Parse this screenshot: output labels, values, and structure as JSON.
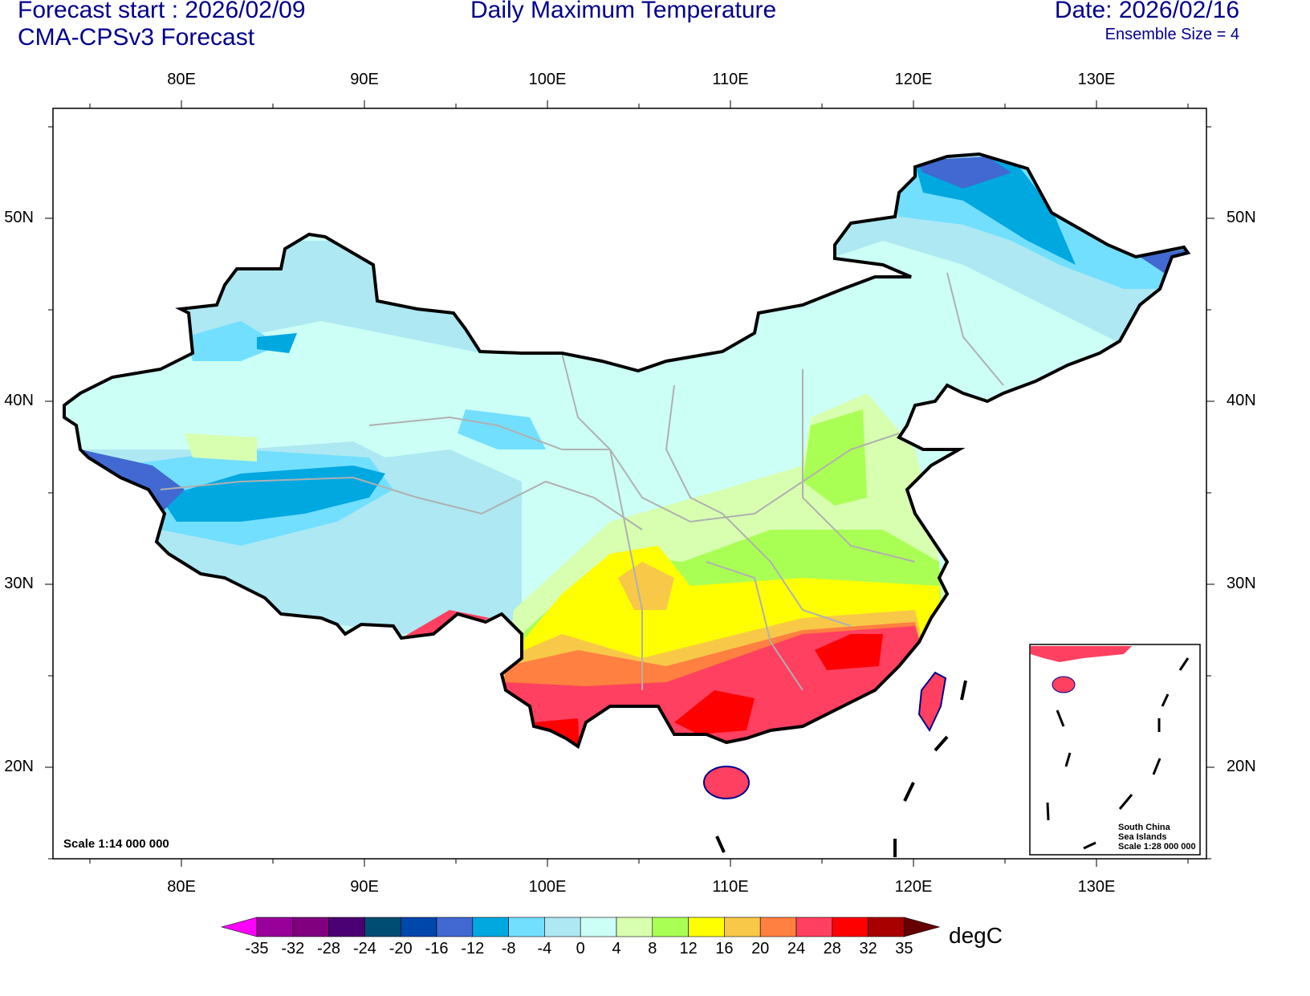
{
  "header": {
    "forecast_start": "Forecast start : 2026/02/09",
    "model": "CMA-CPSv3 Forecast",
    "title": "Daily Maximum Temperature",
    "date": "Date: 2026/02/16",
    "ensemble": "Ensemble Size = 4"
  },
  "axes": {
    "lon_labels": [
      "80E",
      "90E",
      "100E",
      "110E",
      "120E",
      " 130E"
    ],
    "lon_values": [
      80,
      90,
      100,
      110,
      120,
      130
    ],
    "lat_labels": [
      "50N",
      "40N",
      "30N",
      "20N"
    ],
    "lat_values": [
      50,
      40,
      30,
      20
    ]
  },
  "map": {
    "scale": "Scale 1:14 000 000",
    "inset_title_1": "South China",
    "inset_title_2": "Sea Islands",
    "inset_scale": "Scale 1:28 000 000"
  },
  "colorbar": {
    "unit": "degC",
    "levels": [
      "-35",
      "-32",
      "-28",
      "-24",
      "-20",
      "-16",
      "-12",
      "-8",
      "-4",
      "0",
      "4",
      "8",
      "12",
      "16",
      "20",
      "24",
      "28",
      "32",
      "35"
    ],
    "colors": [
      "#ff00ff",
      "#990099",
      "#800080",
      "#4b0073",
      "#004d73",
      "#0047ab",
      "#4169d1",
      "#00a8e0",
      "#73dfff",
      "#aee8f2",
      "#ccfff6",
      "#d8ffb0",
      "#aaff55",
      "#ffff00",
      "#f8c848",
      "#ff8040",
      "#ff4060",
      "#ff0000",
      "#a80000",
      "#660000"
    ]
  }
}
